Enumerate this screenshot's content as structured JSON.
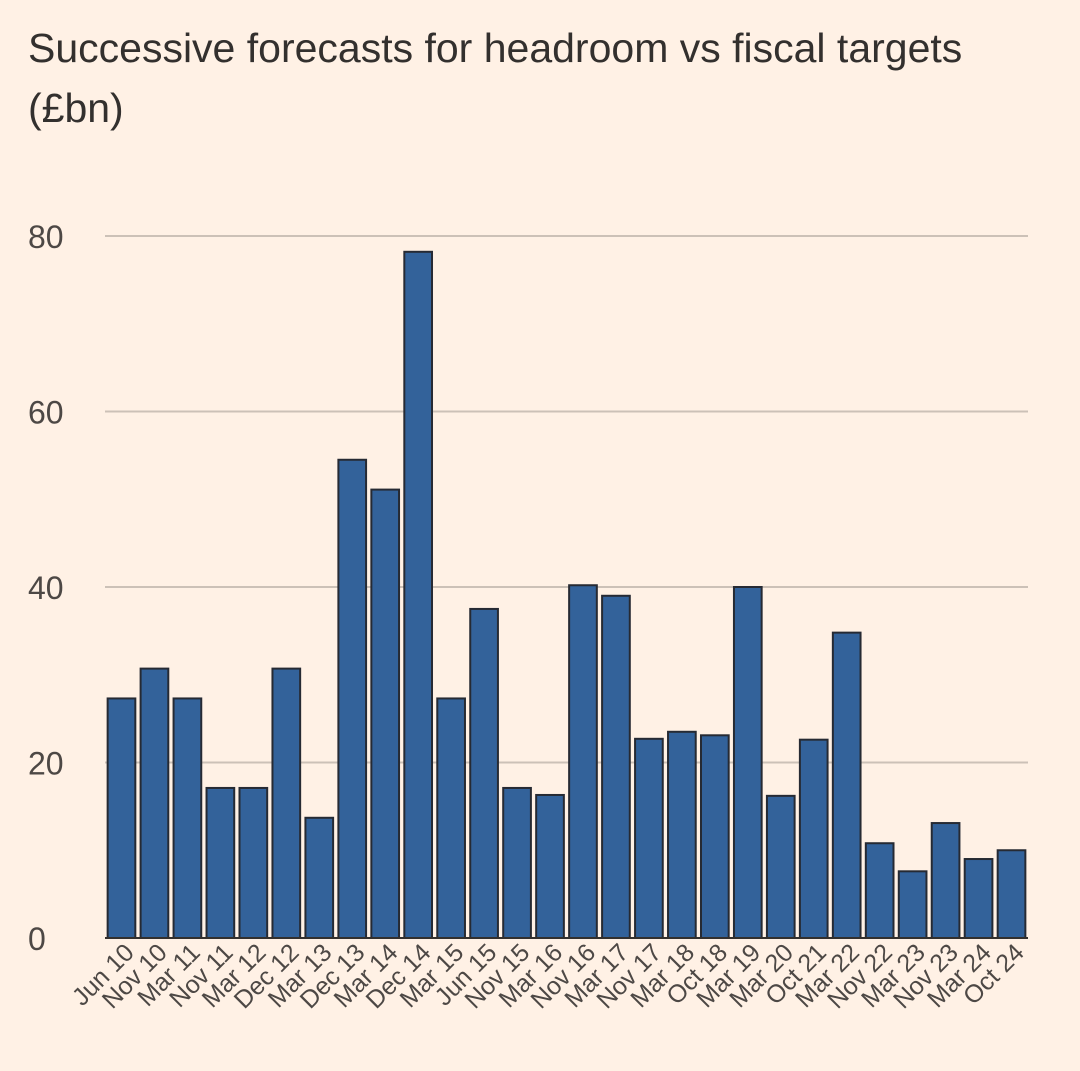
{
  "chart_data": {
    "type": "bar",
    "title": "Successive forecasts for headroom vs fiscal targets (£bn)",
    "xlabel": "",
    "ylabel": "",
    "ylim": [
      0,
      80
    ],
    "yticks": [
      0,
      20,
      40,
      60,
      80
    ],
    "grid": true,
    "bar_color": "#33629A",
    "categories": [
      "Jun 10",
      "Nov 10",
      "Mar 11",
      "Nov 11",
      "Mar 12",
      "Dec 12",
      "Mar 13",
      "Dec 13",
      "Mar 14",
      "Dec 14",
      "Mar 15",
      "Jun 15",
      "Nov 15",
      "Mar 16",
      "Nov 16",
      "Mar 17",
      "Nov 17",
      "Mar 18",
      "Oct 18",
      "Mar 19",
      "Mar 20",
      "Oct 21",
      "Mar 22",
      "Nov 22",
      "Mar 23",
      "Nov 23",
      "Mar 24",
      "Oct 24"
    ],
    "values": [
      27.3,
      30.7,
      27.3,
      17.1,
      17.1,
      30.7,
      13.7,
      54.5,
      51.1,
      78.2,
      27.3,
      37.5,
      17.1,
      16.3,
      40.2,
      39.0,
      22.7,
      23.5,
      23.1,
      40.0,
      16.2,
      22.6,
      34.8,
      10.8,
      7.6,
      13.1,
      9.0,
      10.0
    ]
  }
}
